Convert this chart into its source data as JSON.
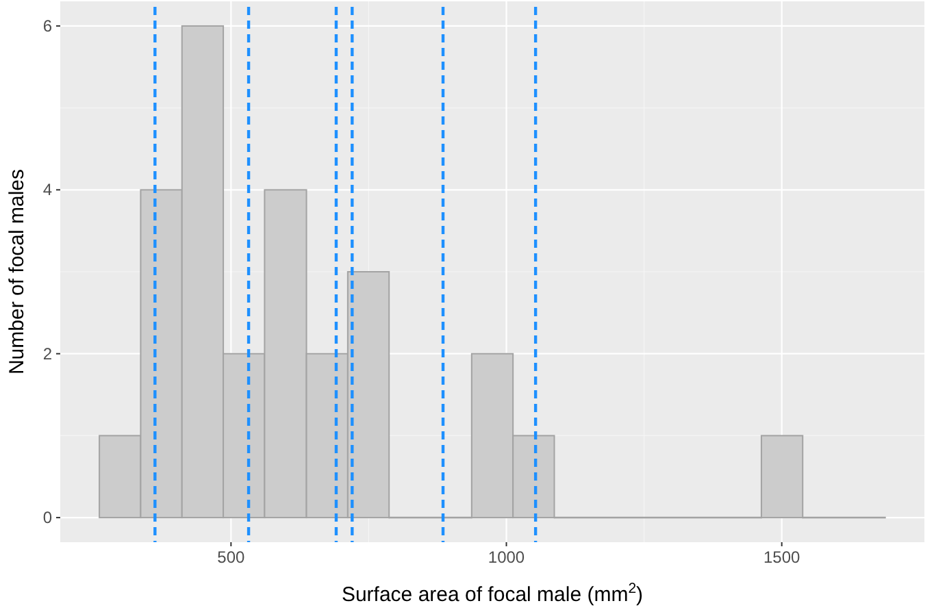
{
  "chart_data": {
    "type": "histogram",
    "xlabel": "Surface area of focal male (mm$^{2}$)",
    "ylabel": "Number of focal males",
    "bins": [
      261,
      336,
      411,
      486,
      561,
      637,
      712,
      787,
      937,
      1012,
      1087,
      1463,
      1538,
      1688
    ],
    "values": [
      1,
      4,
      6,
      2,
      4,
      2,
      3,
      0,
      2,
      1,
      0,
      1,
      0
    ],
    "color": "#cccccc",
    "xlim": [
      190,
      1759
    ],
    "xticks": [
      500,
      1000,
      1500
    ],
    "ylim": [
      -0.3,
      6.3
    ],
    "yticks": [
      0,
      2,
      4,
      6
    ],
    "grid": true,
    "ref_lines": [
      {
        "axis": "x",
        "value": 362,
        "color": "#1e90ff",
        "line_style": "dashed"
      },
      {
        "axis": "x",
        "value": 532,
        "color": "#1e90ff",
        "line_style": "dashed"
      },
      {
        "axis": "x",
        "value": 691,
        "color": "#1e90ff",
        "line_style": "dashed"
      },
      {
        "axis": "x",
        "value": 720,
        "color": "#1e90ff",
        "line_style": "dashed"
      },
      {
        "axis": "x",
        "value": 885,
        "color": "#1e90ff",
        "line_style": "dashed"
      },
      {
        "axis": "x",
        "value": 1053,
        "color": "#1e90ff",
        "line_style": "dashed"
      }
    ]
  }
}
